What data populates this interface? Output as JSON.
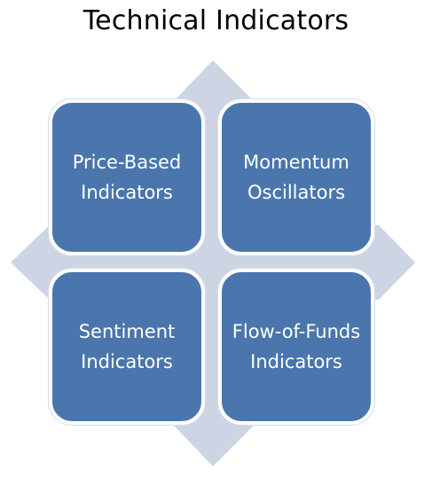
{
  "title": "Technical Indicators",
  "colors": {
    "card_fill": "#4a76ad",
    "card_border": "#ffffff",
    "arrow_fill": "#cdd4e4",
    "title_text": "#000000"
  },
  "quadrants": [
    {
      "lines": [
        "Price-Based",
        "Indicators"
      ]
    },
    {
      "lines": [
        "Momentum",
        "Oscillators"
      ]
    },
    {
      "lines": [
        "Sentiment",
        "Indicators"
      ]
    },
    {
      "lines": [
        "Flow-of-Funds",
        "Indicators"
      ]
    }
  ]
}
